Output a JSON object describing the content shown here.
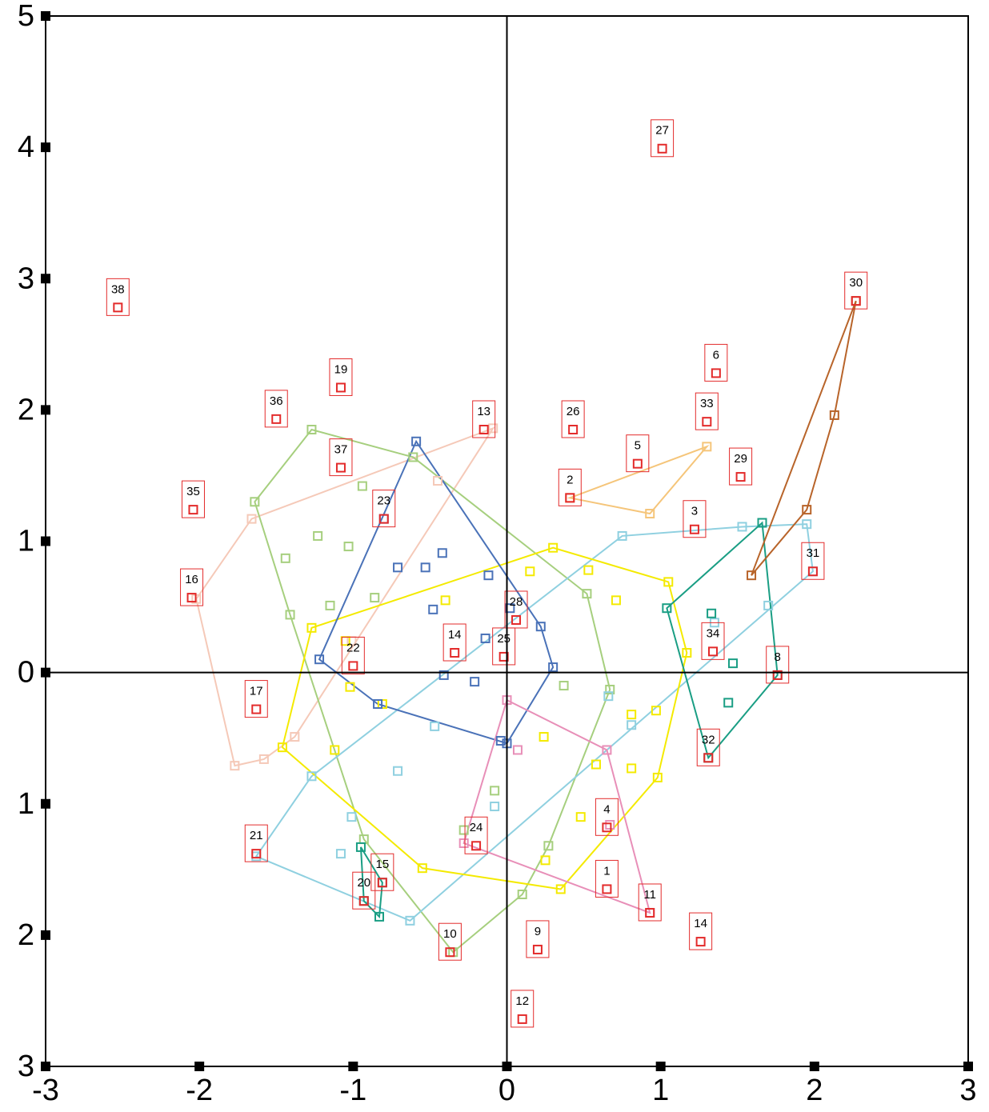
{
  "chart_data": {
    "type": "scatter",
    "xlim": [
      -3,
      3
    ],
    "ylim": [
      -3,
      5
    ],
    "xticks": [
      -3,
      -2,
      -1,
      0,
      1,
      2,
      3
    ],
    "yticks": [
      {
        "value": -3,
        "label": "3"
      },
      {
        "value": -2,
        "label": "2"
      },
      {
        "value": -1,
        "label": "1"
      },
      0,
      1,
      2,
      3,
      4,
      5
    ],
    "series": [
      {
        "color": "#f5c9b8",
        "hull": true,
        "x": [
          -0.45,
          -0.09,
          -1.66,
          -2.02,
          -1.77,
          -1.58,
          -1.01,
          -1.38
        ],
        "y": [
          1.46,
          1.86,
          1.17,
          0.56,
          -0.71,
          -0.66,
          0.24,
          -0.49
        ]
      },
      {
        "color": "#a6cf7e",
        "hull": true,
        "x": [
          -1.27,
          -0.94,
          -0.61,
          -1.23,
          -1.03,
          -1.44,
          -1.41,
          -1.15,
          -0.86,
          -1.64,
          -0.93,
          -0.28,
          -0.08,
          0.27,
          0.1,
          -0.35,
          0.37,
          0.67,
          0.52
        ],
        "y": [
          1.85,
          1.42,
          1.64,
          1.04,
          0.96,
          0.87,
          0.44,
          0.51,
          0.57,
          1.3,
          -1.27,
          -1.2,
          -0.9,
          -1.32,
          -1.69,
          -2.13,
          -0.1,
          -0.13,
          0.6
        ]
      },
      {
        "color": "#8fd0e0",
        "hull": true,
        "x": [
          0.75,
          1.53,
          1.95,
          1.99,
          1.7,
          1.35,
          0.66,
          0.81,
          -0.47,
          -1.01,
          -1.63,
          -1.27,
          -0.71,
          -0.63,
          -0.08,
          -1.08
        ],
        "y": [
          1.04,
          1.11,
          1.13,
          0.77,
          0.51,
          0.38,
          -0.18,
          -0.4,
          -0.41,
          -1.1,
          -1.4,
          -0.79,
          -0.75,
          -1.89,
          -1.02,
          -1.38
        ]
      },
      {
        "color": "#f4ea00",
        "hull": true,
        "x": [
          0.3,
          0.53,
          0.71,
          1.05,
          1.17,
          0.97,
          0.81,
          0.58,
          0.81,
          0.98,
          0.24,
          0.48,
          0.35,
          0.25,
          -1.05,
          -1.02,
          -1.27,
          -0.81,
          -0.55,
          -1.46,
          -1.12,
          -0.4,
          0.15
        ],
        "y": [
          0.95,
          0.78,
          0.55,
          0.69,
          0.15,
          -0.29,
          -0.32,
          -0.7,
          -0.73,
          -0.8,
          -0.49,
          -1.1,
          -1.65,
          -1.43,
          0.24,
          -0.11,
          0.34,
          -0.24,
          -1.49,
          -0.57,
          -0.59,
          0.55,
          0.77
        ]
      },
      {
        "color": "#4a72b8",
        "hull": true,
        "x": [
          -0.59,
          -0.8,
          -0.71,
          -0.42,
          -0.53,
          -0.48,
          -0.12,
          0.02,
          0.22,
          0.3,
          0.0,
          -0.04,
          -0.21,
          -0.41,
          -1.22,
          -0.84,
          -0.14
        ],
        "y": [
          1.76,
          1.17,
          0.8,
          0.91,
          0.8,
          0.48,
          0.74,
          0.49,
          0.35,
          0.04,
          -0.54,
          -0.52,
          -0.07,
          -0.02,
          0.1,
          -0.24,
          0.26
        ]
      },
      {
        "color": "#1a9e84",
        "hull": true,
        "x": [
          1.66,
          1.04,
          1.33,
          1.47,
          1.76,
          1.44,
          1.31
        ],
        "y": [
          1.14,
          0.49,
          0.45,
          0.07,
          -0.02,
          -0.23,
          -0.65
        ]
      },
      {
        "color": "#1a9e84",
        "hull": true,
        "x": [
          -0.95,
          -0.81,
          -0.93,
          -0.83
        ],
        "y": [
          -1.33,
          -1.6,
          -1.74,
          -1.86
        ]
      },
      {
        "color": "#e88fb8",
        "hull": true,
        "x": [
          0.0,
          0.07,
          0.65,
          0.93,
          -0.28,
          0.67
        ],
        "y": [
          -0.21,
          -0.59,
          -0.59,
          -1.83,
          -1.3,
          -1.16
        ]
      },
      {
        "color": "#b8642a",
        "hull": true,
        "x": [
          2.27,
          2.13,
          1.95,
          1.59
        ],
        "y": [
          2.83,
          1.96,
          1.24,
          0.74
        ]
      },
      {
        "color": "#f5c57a",
        "hull": true,
        "x": [
          0.41,
          0.93,
          1.3
        ],
        "y": [
          1.33,
          1.21,
          1.72
        ]
      },
      {
        "color": "#e32b2b",
        "hull": false,
        "labels": [
          "38",
          "27",
          "30",
          "6",
          "19",
          "33",
          "26",
          "36",
          "37",
          "29",
          "5",
          "3",
          "35",
          "2",
          "13",
          "28",
          "25",
          "14",
          "34",
          "8",
          "17",
          "22",
          "16",
          "23",
          "31",
          "32",
          "24",
          "21",
          "15",
          "20",
          "10",
          "9",
          "12",
          "1",
          "11",
          "4",
          "14"
        ],
        "x": [
          -2.53,
          1.01,
          2.27,
          1.36,
          -1.08,
          1.3,
          0.43,
          -1.5,
          -1.08,
          1.52,
          0.85,
          1.22,
          -2.04,
          0.41,
          -0.15,
          0.06,
          -0.02,
          -0.34,
          1.34,
          1.76,
          -1.63,
          -1.0,
          -2.05,
          -0.8,
          1.99,
          1.31,
          -0.2,
          -1.63,
          -0.81,
          -0.93,
          -0.37,
          0.2,
          0.1,
          0.65,
          0.93,
          0.65,
          1.26
        ],
        "y": [
          2.78,
          3.99,
          2.83,
          2.28,
          2.17,
          1.91,
          1.85,
          1.93,
          1.56,
          1.49,
          1.59,
          1.09,
          1.24,
          1.33,
          1.85,
          0.4,
          0.12,
          0.15,
          0.16,
          -0.02,
          -0.28,
          0.05,
          0.57,
          1.17,
          0.77,
          -0.65,
          -1.32,
          -1.38,
          -1.6,
          -1.74,
          -2.13,
          -2.11,
          -2.64,
          -1.65,
          -1.83,
          -1.18,
          -2.05
        ]
      }
    ]
  }
}
